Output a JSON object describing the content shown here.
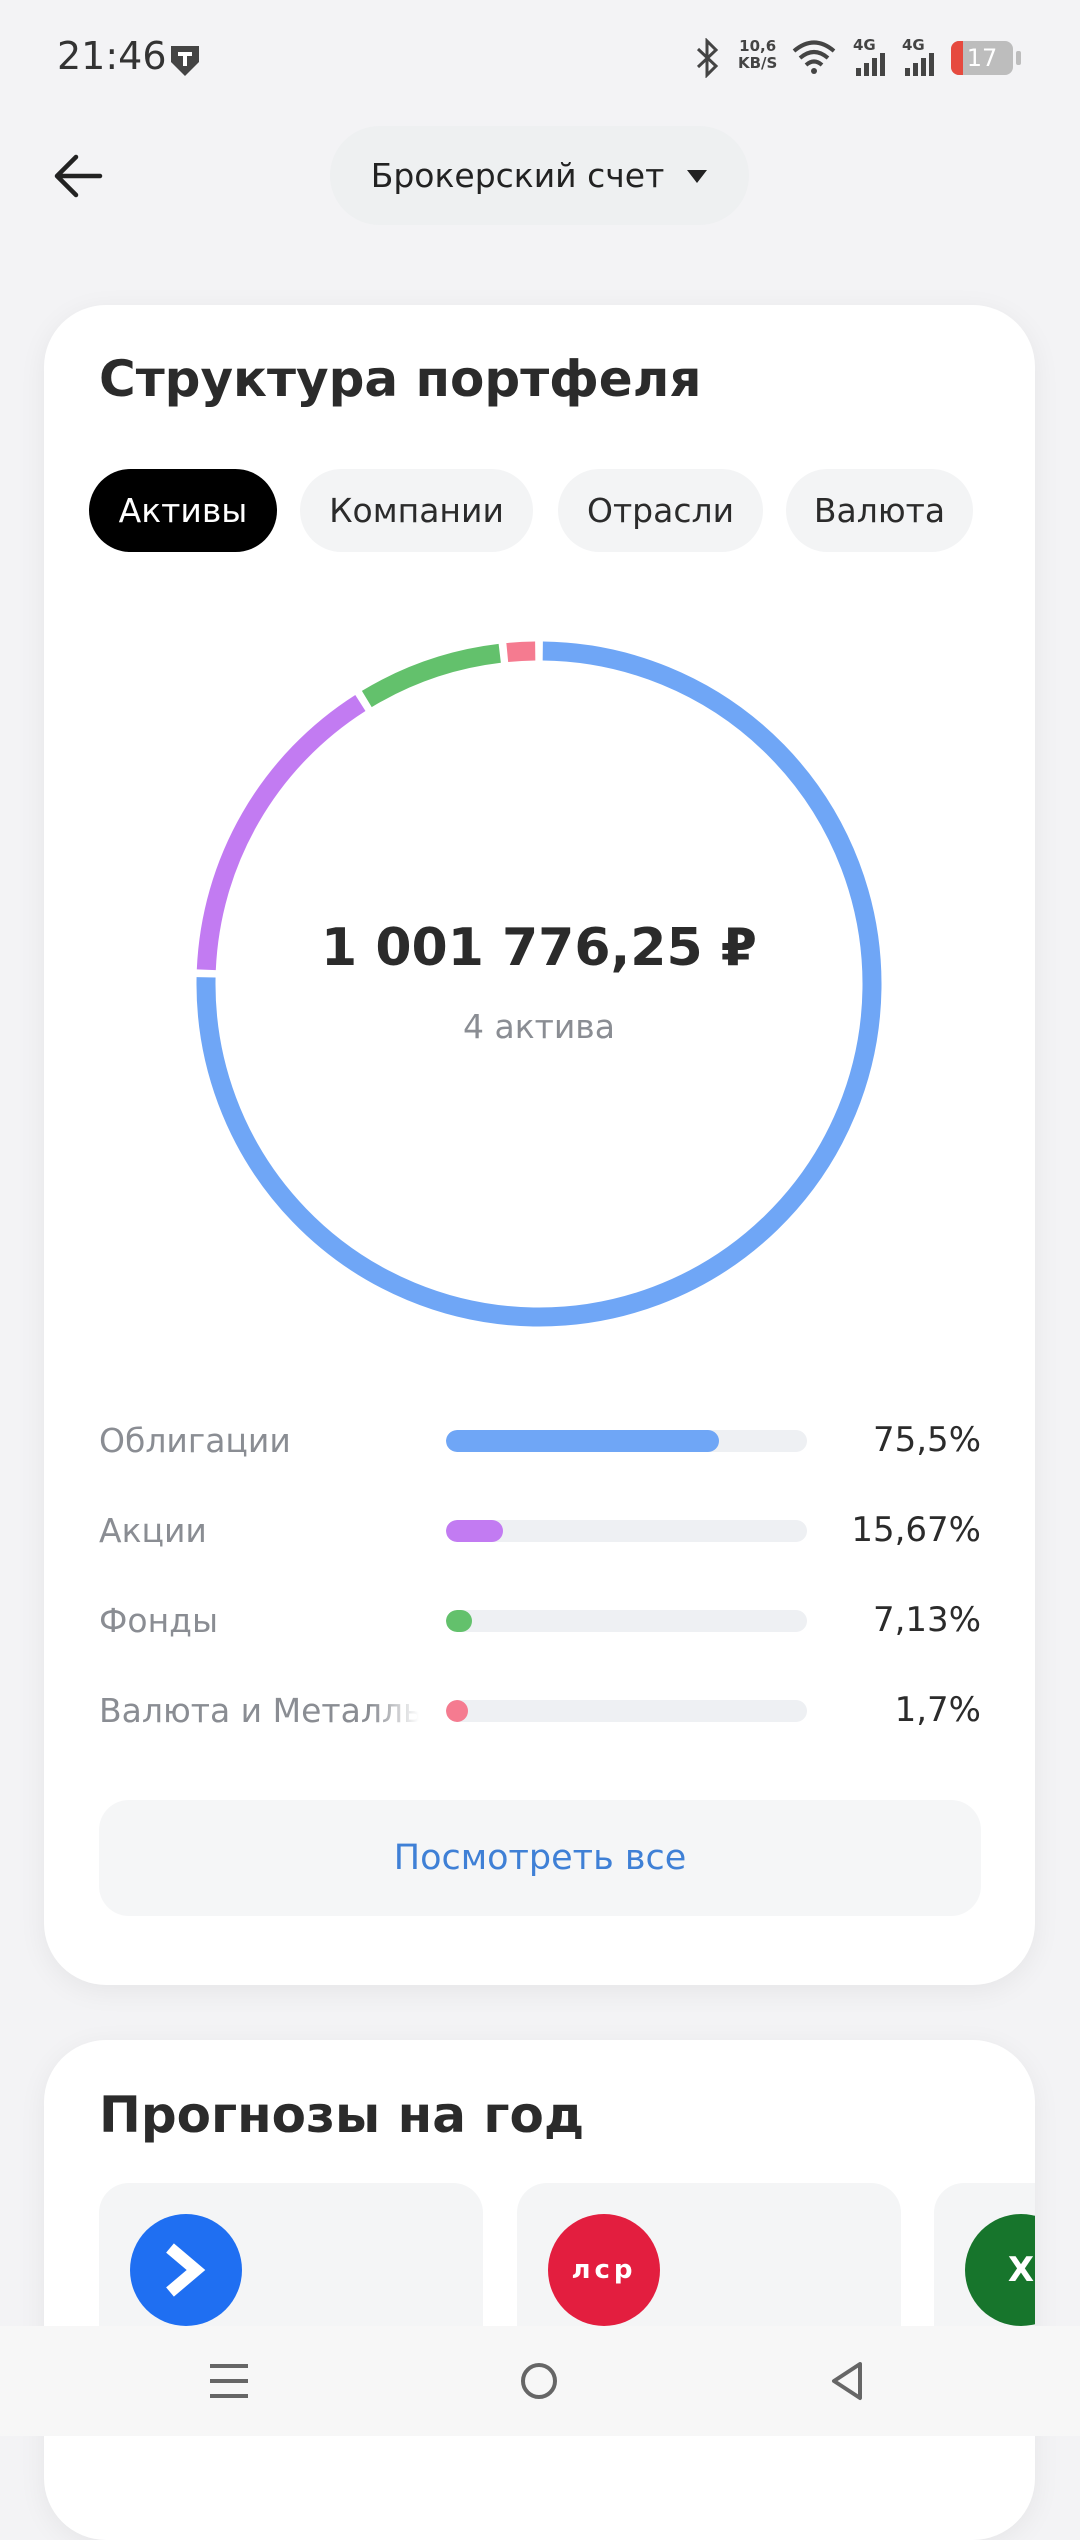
{
  "status_bar": {
    "time": "21:46",
    "net_speed": "10,6",
    "net_unit": "KB/S",
    "signal_1": "4G",
    "signal_2": "4G",
    "battery": "17"
  },
  "header": {
    "account": "Брокерский счет"
  },
  "portfolio": {
    "title": "Структура портфеля",
    "tabs": [
      "Активы",
      "Компании",
      "Отрасли",
      "Валюта"
    ],
    "total": "1 001 776,25 ₽",
    "count": "4 актива",
    "button": "Посмотреть все"
  },
  "chart_data": {
    "type": "donut",
    "categories": [
      "Облигации",
      "Акции",
      "Фонды",
      "Валюта и Металлы"
    ],
    "values": [
      75.5,
      15.67,
      7.13,
      1.7
    ],
    "value_labels": [
      "75,5%",
      "15,67%",
      "7,13%",
      "1,7%"
    ],
    "colors": [
      "#6fa6f6",
      "#c27bf2",
      "#63c16c",
      "#f57b90"
    ]
  },
  "forecasts": {
    "title": "Прогнозы на год",
    "logos": [
      "лср",
      "X"
    ]
  }
}
